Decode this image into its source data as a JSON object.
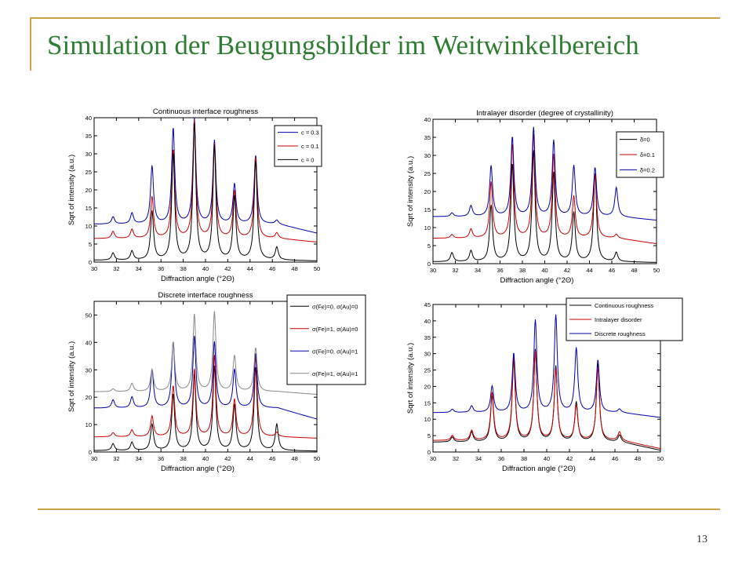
{
  "slide": {
    "title": "Simulation der Beugungsbilder im Weitwinkelbereich",
    "page_number": "13"
  },
  "colors": {
    "accent_line": "#c8a542",
    "title": "#2e7d32"
  },
  "chart_data": [
    {
      "type": "line",
      "title": "Continuous interface roughness",
      "xlabel": "Diffraction angle (°2Θ)",
      "ylabel": "Sqrt of intensity (a.u.)",
      "xlim": [
        30,
        50
      ],
      "ylim": [
        0,
        40
      ],
      "xticks": [
        30,
        32,
        34,
        36,
        38,
        40,
        42,
        44,
        46,
        48,
        50
      ],
      "yticks": [
        0,
        5,
        10,
        15,
        20,
        25,
        30,
        35,
        40
      ],
      "grid": false,
      "legend": "top-right",
      "peaks": [
        31.7,
        33.4,
        35.2,
        37.1,
        39.0,
        40.8,
        42.6,
        44.5,
        46.4
      ],
      "series": [
        {
          "name": "c = 0.3",
          "color": "#0000aa",
          "baseline": 10.5,
          "tail_end": 8,
          "heights": [
            12.5,
            13.5,
            26.5,
            37,
            39.5,
            33.5,
            21.5,
            29.5,
            11.5
          ]
        },
        {
          "name": "c = 0.1",
          "color": "#cc0000",
          "baseline": 6.5,
          "tail_end": 5.5,
          "heights": [
            8.5,
            9,
            18,
            31,
            39,
            32.5,
            19.5,
            29,
            8
          ]
        },
        {
          "name": "c = 0",
          "color": "#000000",
          "baseline": 0.5,
          "tail_end": 0.3,
          "heights": [
            2.5,
            3,
            14,
            30,
            38,
            32,
            18,
            28,
            4
          ]
        }
      ]
    },
    {
      "type": "line",
      "title": "Intralayer disorder (degree of crystallinity)",
      "xlabel": "Diffraction angle (°2Θ)",
      "ylabel": "Sqrt of intensity (a.u.)",
      "xlim": [
        30,
        50
      ],
      "ylim": [
        0,
        40
      ],
      "xticks": [
        30,
        32,
        34,
        36,
        38,
        40,
        42,
        44,
        46,
        48,
        50
      ],
      "yticks": [
        0,
        5,
        10,
        15,
        20,
        25,
        30,
        35,
        40
      ],
      "grid": false,
      "legend": "top-right",
      "peaks": [
        31.7,
        33.4,
        35.2,
        37.1,
        39.0,
        40.8,
        42.6,
        44.5,
        46.4
      ],
      "series": [
        {
          "name": "δ=0",
          "color": "#000000",
          "baseline": 0.5,
          "tail_end": 0.3,
          "heights": [
            3,
            3.5,
            16,
            27.5,
            31,
            25,
            14,
            25,
            3
          ]
        },
        {
          "name": "δ=0.1",
          "color": "#cc0000",
          "baseline": 7,
          "tail_end": 5.5,
          "heights": [
            8,
            9.5,
            22.5,
            33,
            35.5,
            30,
            18.5,
            25,
            8
          ]
        },
        {
          "name": "δ=0.2",
          "color": "#0000aa",
          "baseline": 13,
          "tail_end": 12,
          "heights": [
            14,
            16,
            27,
            35,
            37.5,
            34,
            27,
            26.5,
            21
          ]
        }
      ]
    },
    {
      "type": "line",
      "title": "Discrete interface roughness",
      "xlabel": "Diffraction angle (°2Θ)",
      "ylabel": "Sqrt of intensity (a.u.)",
      "xlim": [
        30,
        50
      ],
      "ylim": [
        0,
        55
      ],
      "xticks": [
        30,
        32,
        34,
        36,
        38,
        40,
        42,
        44,
        46,
        48,
        50
      ],
      "yticks": [
        0,
        10,
        20,
        30,
        40,
        50
      ],
      "grid": false,
      "legend": "outside-right",
      "peaks": [
        31.7,
        33.4,
        35.2,
        37.1,
        39.0,
        40.8,
        42.6,
        44.5,
        46.4
      ],
      "series": [
        {
          "name": "σ(Fe)=0, σ(Au)=0",
          "color": "#000000",
          "baseline": 0.5,
          "tail_end": 0.3,
          "heights": [
            3,
            3.5,
            10,
            21,
            28,
            31,
            17,
            31,
            10
          ]
        },
        {
          "name": "σ(Fe)=1, σ(Au)=0",
          "color": "#cc0000",
          "baseline": 5.5,
          "tail_end": 5,
          "heights": [
            7,
            8,
            13,
            24,
            30,
            35,
            19,
            35,
            7
          ]
        },
        {
          "name": "σ(Fe)=0, σ(Au)=1",
          "color": "#0000aa",
          "baseline": 16,
          "tail_end": 12,
          "heights": [
            19,
            20,
            30,
            40,
            42,
            40,
            30,
            36,
            16
          ]
        },
        {
          "name": "σ(Fe)=1, σ(Au)=1",
          "color": "#888888",
          "baseline": 22,
          "tail_end": 21,
          "heights": [
            23,
            25,
            30,
            40,
            50,
            51,
            35,
            38,
            22
          ]
        }
      ]
    },
    {
      "type": "line",
      "title": "",
      "xlabel": "Diffraction angle (°2Θ)",
      "ylabel": "Sqrt of intensity (a.u.)",
      "xlim": [
        30,
        50
      ],
      "ylim": [
        0,
        45
      ],
      "xticks": [
        30,
        32,
        34,
        36,
        38,
        40,
        42,
        44,
        46,
        48,
        50
      ],
      "yticks": [
        0,
        5,
        10,
        15,
        20,
        25,
        30,
        35,
        40,
        45
      ],
      "grid": false,
      "legend": "top-right",
      "peaks": [
        31.7,
        33.4,
        35.2,
        37.1,
        39.0,
        40.8,
        42.6,
        44.5,
        46.4
      ],
      "series": [
        {
          "name": "Continuous roughness",
          "color": "#000000",
          "baseline": 3,
          "tail_end": 0.5,
          "heights": [
            4.5,
            6,
            17,
            28,
            31,
            26,
            15,
            27,
            5
          ]
        },
        {
          "name": "Intralayer disorder",
          "color": "#cc0000",
          "baseline": 3.5,
          "tail_end": 1,
          "heights": [
            5,
            6.5,
            18,
            29,
            30.5,
            25,
            14,
            26,
            6
          ]
        },
        {
          "name": "Discrete roughness",
          "color": "#0000aa",
          "baseline": 12,
          "tail_end": 10.5,
          "heights": [
            13,
            14,
            20,
            30,
            40,
            41.5,
            31.5,
            28,
            13
          ]
        }
      ]
    }
  ]
}
